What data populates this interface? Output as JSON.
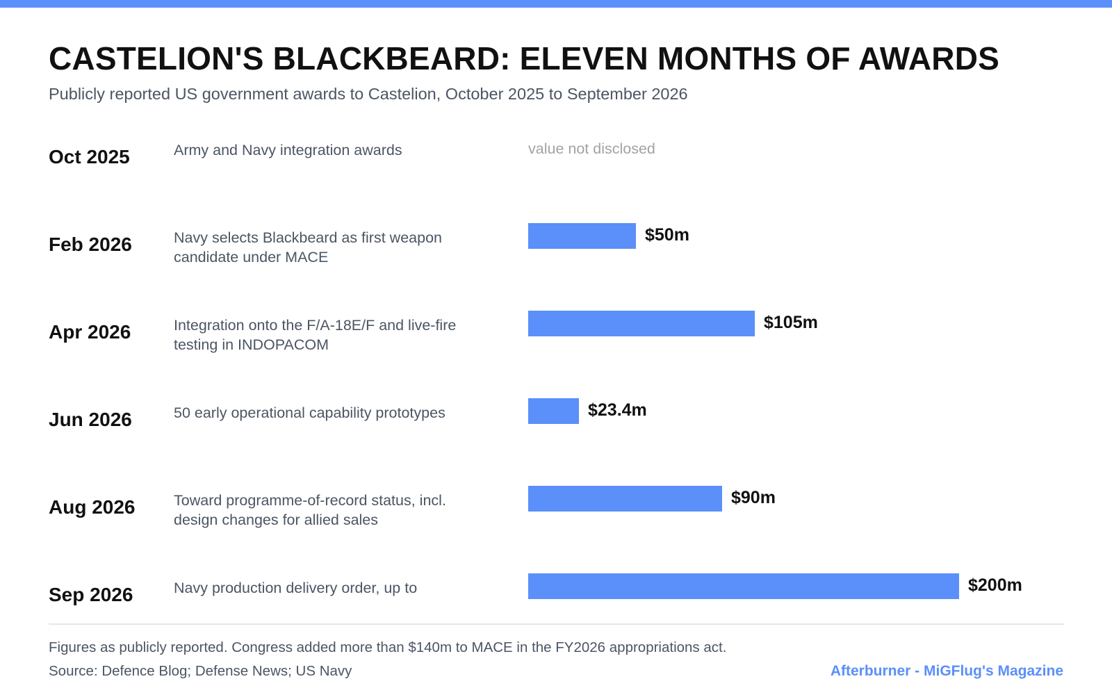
{
  "accent_color": "#5b8ff9",
  "header": {
    "title": "CASTELION'S BLACKBEARD: ELEVEN MONTHS OF AWARDS",
    "subtitle": "Publicly reported US government awards to Castelion, October 2025 to September 2026"
  },
  "chart_data": {
    "type": "bar",
    "orientation": "horizontal",
    "title": "CASTELION'S BLACKBEARD: ELEVEN MONTHS OF AWARDS",
    "subtitle": "Publicly reported US government awards to Castelion, October 2025 to September 2026",
    "unit": "$m",
    "xlim": [
      0,
      200
    ],
    "grid": false,
    "rows": [
      {
        "date": "Oct 2025",
        "description": "Army and Navy integration awards",
        "value": null,
        "label": "value not disclosed"
      },
      {
        "date": "Feb 2026",
        "description": "Navy selects Blackbeard as first weapon candidate under MACE",
        "value": 50,
        "label": "$50m"
      },
      {
        "date": "Apr 2026",
        "description": "Integration onto the F/A-18E/F and live-fire testing in INDOPACOM",
        "value": 105,
        "label": "$105m"
      },
      {
        "date": "Jun 2026",
        "description": "50 early operational capability prototypes",
        "value": 23.4,
        "label": "$23.4m"
      },
      {
        "date": "Aug 2026",
        "description": "Toward programme-of-record status, incl. design changes for allied sales",
        "value": 90,
        "label": "$90m"
      },
      {
        "date": "Sep 2026",
        "description": "Navy production delivery order, up to",
        "value": 200,
        "label": "$200m"
      }
    ]
  },
  "footer": {
    "note": "Figures as publicly reported. Congress added more than $140m to MACE in the FY2026 appropriations act.",
    "source": "Source: Defence Blog; Defense News; US Navy",
    "brand": "Afterburner - MiGFlug's Magazine"
  }
}
